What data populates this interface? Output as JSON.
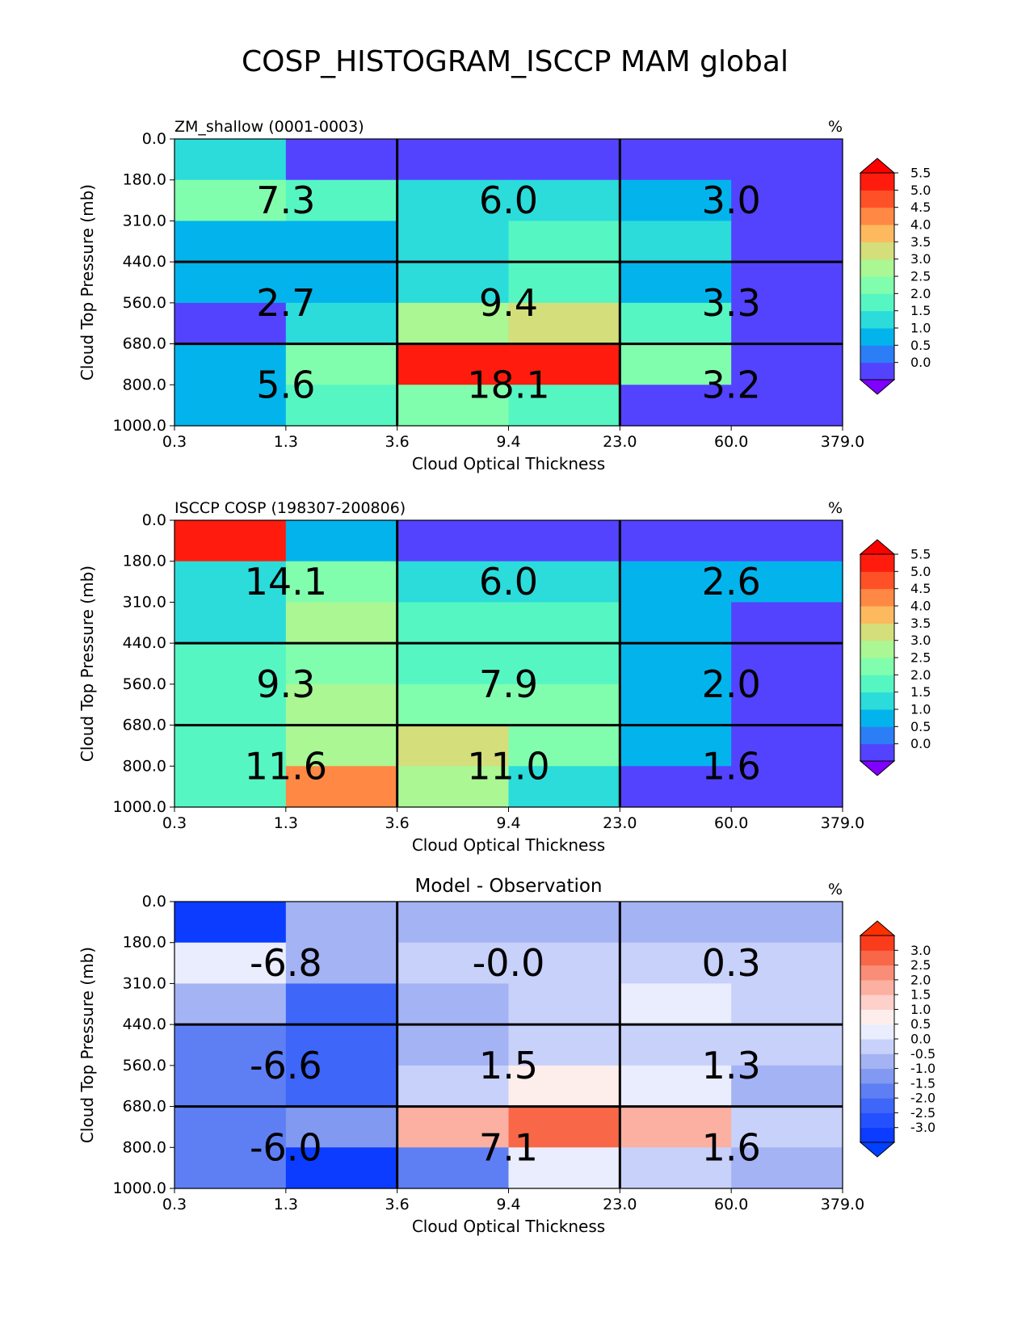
{
  "title": "COSP_HISTOGRAM_ISCCP MAM global",
  "chart_data": [
    {
      "type": "heatmap",
      "title_left": "ZM_shallow (0001-0003)",
      "title_center": "",
      "units": "%",
      "xlabel": "Cloud Optical Thickness",
      "ylabel": "Cloud Top Pressure (mb)",
      "x_ticks": [
        "0.3",
        "1.3",
        "3.6",
        "9.4",
        "23.0",
        "60.0",
        "379.0"
      ],
      "y_ticks": [
        "0.0",
        "180.0",
        "310.0",
        "440.0",
        "560.0",
        "680.0",
        "800.0",
        "1000.0"
      ],
      "cells": [
        [
          1.5,
          0.3,
          0.3,
          0.3,
          0.3,
          0.3
        ],
        [
          2.5,
          2.0,
          1.5,
          1.5,
          1.0,
          0.3
        ],
        [
          1.0,
          1.0,
          1.5,
          2.0,
          1.5,
          0.3
        ],
        [
          1.0,
          1.0,
          1.5,
          2.0,
          1.0,
          0.3
        ],
        [
          0.3,
          1.5,
          3.0,
          3.5,
          2.0,
          0.3
        ],
        [
          1.0,
          2.5,
          6.0,
          6.0,
          2.5,
          0.3
        ],
        [
          1.0,
          2.0,
          2.5,
          2.0,
          0.3,
          0.3
        ]
      ],
      "group_values": [
        [
          "7.3",
          "6.0",
          "3.0"
        ],
        [
          "2.7",
          "9.4",
          "3.3"
        ],
        [
          "5.6",
          "18.1",
          "3.2"
        ]
      ],
      "colorbar": {
        "ticks": [
          "0.0",
          "0.5",
          "1.0",
          "1.5",
          "2.0",
          "2.5",
          "3.0",
          "3.5",
          "4.0",
          "4.5",
          "5.0",
          "5.5"
        ],
        "under": "#8000ff",
        "over": "#ff0000",
        "colors": [
          "#5343ff",
          "#2c7ef7",
          "#03b4ec",
          "#2bdcdb",
          "#56f6c3",
          "#81fead",
          "#aaf794",
          "#d4de7a",
          "#fcb95e",
          "#ff8844",
          "#ff5128",
          "#ff1c0e"
        ]
      }
    },
    {
      "type": "heatmap",
      "title_left": "ISCCP COSP (198307-200806)",
      "title_center": "",
      "units": "%",
      "xlabel": "Cloud Optical Thickness",
      "ylabel": "Cloud Top Pressure (mb)",
      "x_ticks": [
        "0.3",
        "1.3",
        "3.6",
        "9.4",
        "23.0",
        "60.0",
        "379.0"
      ],
      "y_ticks": [
        "0.0",
        "180.0",
        "310.0",
        "440.0",
        "560.0",
        "680.0",
        "800.0",
        "1000.0"
      ],
      "cells": [
        [
          6.0,
          1.0,
          0.3,
          0.3,
          0.3,
          0.3
        ],
        [
          1.5,
          2.5,
          1.5,
          1.5,
          1.0,
          1.0
        ],
        [
          1.5,
          3.0,
          2.0,
          2.0,
          1.0,
          0.3
        ],
        [
          2.0,
          2.5,
          2.0,
          2.0,
          1.0,
          0.3
        ],
        [
          2.0,
          3.0,
          2.5,
          2.5,
          1.0,
          0.3
        ],
        [
          2.0,
          3.0,
          3.5,
          2.5,
          1.0,
          0.3
        ],
        [
          2.0,
          4.5,
          3.0,
          1.5,
          0.3,
          0.3
        ]
      ],
      "group_values": [
        [
          "14.1",
          "6.0",
          "2.6"
        ],
        [
          "9.3",
          "7.9",
          "2.0"
        ],
        [
          "11.6",
          "11.0",
          "1.6"
        ]
      ],
      "colorbar": {
        "ticks": [
          "0.0",
          "0.5",
          "1.0",
          "1.5",
          "2.0",
          "2.5",
          "3.0",
          "3.5",
          "4.0",
          "4.5",
          "5.0",
          "5.5"
        ],
        "under": "#8000ff",
        "over": "#ff0000",
        "colors": [
          "#5343ff",
          "#2c7ef7",
          "#03b4ec",
          "#2bdcdb",
          "#56f6c3",
          "#81fead",
          "#aaf794",
          "#d4de7a",
          "#fcb95e",
          "#ff8844",
          "#ff5128",
          "#ff1c0e"
        ]
      }
    },
    {
      "type": "heatmap",
      "title_left": "",
      "title_center": "Model - Observation",
      "units": "%",
      "xlabel": "Cloud Optical Thickness",
      "ylabel": "Cloud Top Pressure (mb)",
      "x_ticks": [
        "0.3",
        "1.3",
        "3.6",
        "9.4",
        "23.0",
        "60.0",
        "379.0"
      ],
      "y_ticks": [
        "0.0",
        "180.0",
        "310.0",
        "440.0",
        "560.0",
        "680.0",
        "800.0",
        "1000.0"
      ],
      "cells": [
        [
          -3.0,
          -0.3,
          -0.3,
          -0.3,
          -0.3,
          -0.3
        ],
        [
          0.8,
          -0.3,
          0.3,
          0.3,
          0.3,
          0.3
        ],
        [
          -0.3,
          -2.0,
          -0.3,
          0.3,
          0.8,
          0.3
        ],
        [
          -1.3,
          -2.0,
          -0.3,
          0.3,
          0.3,
          0.3
        ],
        [
          -1.3,
          -2.0,
          0.3,
          1.3,
          0.8,
          -0.3
        ],
        [
          -1.3,
          -0.8,
          2.3,
          3.0,
          2.3,
          0.3
        ],
        [
          -1.3,
          -2.8,
          -1.3,
          0.8,
          0.3,
          -0.3
        ]
      ],
      "group_values": [
        [
          "-6.8",
          "-0.0",
          "0.3"
        ],
        [
          "-6.6",
          "1.5",
          "1.3"
        ],
        [
          "-6.0",
          "7.1",
          "1.6"
        ]
      ],
      "colorbar": {
        "ticks": [
          "-3.0",
          "-2.5",
          "-2.0",
          "-1.5",
          "-1.0",
          "-0.5",
          "0.0",
          "0.5",
          "1.0",
          "1.5",
          "2.0",
          "2.5",
          "3.0"
        ],
        "under": "#0040ff",
        "over": "#ff3000",
        "colors": [
          "#0b3cff",
          "#2451ff",
          "#3e66f8",
          "#5e7ff4",
          "#8199f1",
          "#a4b3f4",
          "#c8d1fa",
          "#eaedfd",
          "#fdeeec",
          "#fdd0ca",
          "#fbb0a2",
          "#fa8d77",
          "#f86848",
          "#fb3c1c"
        ]
      }
    }
  ]
}
